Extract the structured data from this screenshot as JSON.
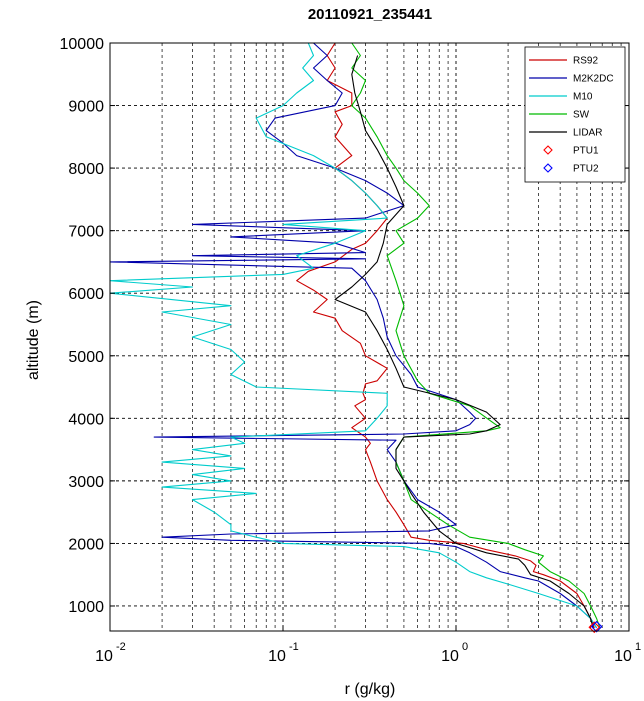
{
  "chart_data": {
    "type": "line",
    "title": "20110921_235441",
    "xlabel": "r (g/kg)",
    "ylabel": "altitude (m)",
    "x_scale": "log",
    "xlim": [
      0.01,
      10
    ],
    "ylim": [
      600,
      10000
    ],
    "x_ticks": [
      {
        "base": "10",
        "exp": "-2",
        "value": 0.01
      },
      {
        "base": "10",
        "exp": "-1",
        "value": 0.1
      },
      {
        "base": "10",
        "exp": "0",
        "value": 1
      },
      {
        "base": "10",
        "exp": "1",
        "value": 10
      }
    ],
    "y_ticks": [
      1000,
      2000,
      3000,
      4000,
      5000,
      6000,
      7000,
      8000,
      9000,
      10000
    ],
    "grid": true,
    "legend_position": "top-right",
    "series": [
      {
        "name": "RS92",
        "color": "#cc0000",
        "kind": "line",
        "points": [
          [
            6.3,
            650
          ],
          [
            6.0,
            800
          ],
          [
            5.5,
            1000
          ],
          [
            5.0,
            1200
          ],
          [
            4.0,
            1400
          ],
          [
            3.2,
            1500
          ],
          [
            2.8,
            1550
          ],
          [
            2.9,
            1650
          ],
          [
            2.7,
            1720
          ],
          [
            2.2,
            1800
          ],
          [
            1.5,
            1900
          ],
          [
            1.1,
            2000
          ],
          [
            0.7,
            2050
          ],
          [
            0.55,
            2100
          ],
          [
            0.5,
            2300
          ],
          [
            0.45,
            2500
          ],
          [
            0.4,
            2700
          ],
          [
            0.35,
            3000
          ],
          [
            0.32,
            3300
          ],
          [
            0.3,
            3500
          ],
          [
            0.32,
            3600
          ],
          [
            0.3,
            3700
          ],
          [
            0.25,
            3850
          ],
          [
            0.3,
            4000
          ],
          [
            0.26,
            4200
          ],
          [
            0.3,
            4300
          ],
          [
            0.29,
            4400
          ],
          [
            0.3,
            4550
          ],
          [
            0.35,
            4600
          ],
          [
            0.4,
            4800
          ],
          [
            0.3,
            5000
          ],
          [
            0.28,
            5200
          ],
          [
            0.22,
            5400
          ],
          [
            0.2,
            5600
          ],
          [
            0.15,
            5700
          ],
          [
            0.18,
            5900
          ],
          [
            0.15,
            6050
          ],
          [
            0.12,
            6200
          ],
          [
            0.14,
            6350
          ],
          [
            0.2,
            6500
          ],
          [
            0.25,
            6700
          ],
          [
            0.3,
            6800
          ],
          [
            0.35,
            7000
          ],
          [
            0.4,
            7200
          ],
          [
            0.35,
            7400
          ],
          [
            0.3,
            7600
          ],
          [
            0.25,
            7800
          ],
          [
            0.2,
            8000
          ],
          [
            0.25,
            8200
          ],
          [
            0.2,
            8500
          ],
          [
            0.22,
            8700
          ],
          [
            0.2,
            8900
          ],
          [
            0.25,
            9000
          ],
          [
            0.25,
            9200
          ],
          [
            0.18,
            9400
          ],
          [
            0.2,
            9600
          ],
          [
            0.18,
            9800
          ],
          [
            0.2,
            10000
          ]
        ]
      },
      {
        "name": "M2K2DC",
        "color": "#0000aa",
        "kind": "line",
        "points": [
          [
            6.5,
            650
          ],
          [
            6.0,
            800
          ],
          [
            5.0,
            1000
          ],
          [
            4.0,
            1200
          ],
          [
            3.0,
            1400
          ],
          [
            2.5,
            1450
          ],
          [
            1.8,
            1550
          ],
          [
            1.5,
            1700
          ],
          [
            1.2,
            1850
          ],
          [
            1.0,
            1950
          ],
          [
            0.7,
            2000
          ],
          [
            0.05,
            2050
          ],
          [
            0.02,
            2100
          ],
          [
            0.05,
            2150
          ],
          [
            0.7,
            2200
          ],
          [
            1.0,
            2300
          ],
          [
            0.8,
            2500
          ],
          [
            0.6,
            2700
          ],
          [
            0.5,
            3000
          ],
          [
            0.45,
            3300
          ],
          [
            0.4,
            3500
          ],
          [
            0.45,
            3650
          ],
          [
            0.018,
            3700
          ],
          [
            0.5,
            3750
          ],
          [
            1.0,
            3800
          ],
          [
            1.2,
            3900
          ],
          [
            1.3,
            4000
          ],
          [
            1.2,
            4100
          ],
          [
            1.0,
            4300
          ],
          [
            0.6,
            4500
          ],
          [
            0.55,
            4700
          ],
          [
            0.45,
            5000
          ],
          [
            0.4,
            5300
          ],
          [
            0.38,
            5600
          ],
          [
            0.35,
            5900
          ],
          [
            0.3,
            6200
          ],
          [
            0.25,
            6400
          ],
          [
            0.01,
            6500
          ],
          [
            0.3,
            6550
          ],
          [
            0.03,
            6600
          ],
          [
            0.3,
            6650
          ],
          [
            0.2,
            6800
          ],
          [
            0.05,
            6900
          ],
          [
            0.3,
            7000
          ],
          [
            0.03,
            7100
          ],
          [
            0.3,
            7200
          ],
          [
            0.5,
            7400
          ],
          [
            0.4,
            7600
          ],
          [
            0.3,
            7800
          ],
          [
            0.2,
            8000
          ],
          [
            0.12,
            8200
          ],
          [
            0.1,
            8400
          ],
          [
            0.08,
            8600
          ],
          [
            0.09,
            8800
          ],
          [
            0.2,
            9000
          ],
          [
            0.22,
            9200
          ],
          [
            0.18,
            9400
          ],
          [
            0.15,
            9600
          ],
          [
            0.18,
            9800
          ],
          [
            0.15,
            10000
          ]
        ]
      },
      {
        "name": "M10",
        "color": "#00cccc",
        "kind": "line",
        "points": [
          [
            6.5,
            650
          ],
          [
            6.0,
            800
          ],
          [
            5.0,
            1000
          ],
          [
            3.0,
            1200
          ],
          [
            2.0,
            1350
          ],
          [
            1.5,
            1450
          ],
          [
            1.2,
            1550
          ],
          [
            1.0,
            1700
          ],
          [
            0.8,
            1850
          ],
          [
            0.5,
            1950
          ],
          [
            0.1,
            2000
          ],
          [
            0.07,
            2100
          ],
          [
            0.05,
            2200
          ],
          [
            0.05,
            2300
          ],
          [
            0.04,
            2500
          ],
          [
            0.03,
            2700
          ],
          [
            0.07,
            2800
          ],
          [
            0.02,
            2900
          ],
          [
            0.05,
            3000
          ],
          [
            0.03,
            3100
          ],
          [
            0.06,
            3200
          ],
          [
            0.02,
            3300
          ],
          [
            0.05,
            3400
          ],
          [
            0.03,
            3500
          ],
          [
            0.06,
            3600
          ],
          [
            0.05,
            3700
          ],
          [
            0.3,
            3800
          ],
          [
            0.35,
            4000
          ],
          [
            0.4,
            4200
          ],
          [
            0.4,
            4400
          ],
          [
            0.07,
            4500
          ],
          [
            0.05,
            4700
          ],
          [
            0.06,
            4900
          ],
          [
            0.05,
            5100
          ],
          [
            0.03,
            5300
          ],
          [
            0.05,
            5500
          ],
          [
            0.02,
            5700
          ],
          [
            0.05,
            5800
          ],
          [
            0.01,
            6000
          ],
          [
            0.03,
            6100
          ],
          [
            0.01,
            6200
          ],
          [
            0.1,
            6300
          ],
          [
            0.15,
            6400
          ],
          [
            0.12,
            6600
          ],
          [
            0.2,
            6800
          ],
          [
            0.3,
            7000
          ],
          [
            0.1,
            7100
          ],
          [
            0.4,
            7200
          ],
          [
            0.35,
            7400
          ],
          [
            0.3,
            7600
          ],
          [
            0.25,
            7800
          ],
          [
            0.2,
            8000
          ],
          [
            0.15,
            8200
          ],
          [
            0.08,
            8500
          ],
          [
            0.07,
            8800
          ],
          [
            0.1,
            9000
          ],
          [
            0.12,
            9200
          ],
          [
            0.15,
            9400
          ],
          [
            0.13,
            9600
          ],
          [
            0.15,
            9800
          ],
          [
            0.14,
            10000
          ]
        ]
      },
      {
        "name": "SW",
        "color": "#00bb00",
        "kind": "line",
        "points": [
          [
            6.8,
            650
          ],
          [
            6.5,
            800
          ],
          [
            6.0,
            1000
          ],
          [
            5.5,
            1200
          ],
          [
            4.5,
            1400
          ],
          [
            3.5,
            1550
          ],
          [
            3.0,
            1700
          ],
          [
            3.2,
            1800
          ],
          [
            2.5,
            1900
          ],
          [
            2.0,
            2000
          ],
          [
            1.2,
            2100
          ],
          [
            0.9,
            2300
          ],
          [
            0.7,
            2500
          ],
          [
            0.55,
            2700
          ],
          [
            0.5,
            3000
          ],
          [
            0.45,
            3300
          ],
          [
            0.45,
            3500
          ],
          [
            0.5,
            3700
          ],
          [
            1.5,
            3800
          ],
          [
            1.8,
            3850
          ],
          [
            1.6,
            3950
          ],
          [
            1.2,
            4200
          ],
          [
            0.7,
            4400
          ],
          [
            0.6,
            4600
          ],
          [
            0.5,
            5000
          ],
          [
            0.45,
            5400
          ],
          [
            0.5,
            5800
          ],
          [
            0.45,
            6200
          ],
          [
            0.4,
            6600
          ],
          [
            0.5,
            6800
          ],
          [
            0.45,
            7000
          ],
          [
            0.6,
            7200
          ],
          [
            0.7,
            7400
          ],
          [
            0.6,
            7600
          ],
          [
            0.5,
            7800
          ],
          [
            0.45,
            8000
          ],
          [
            0.4,
            8200
          ],
          [
            0.35,
            8500
          ],
          [
            0.3,
            8800
          ],
          [
            0.25,
            9000
          ],
          [
            0.28,
            9200
          ],
          [
            0.3,
            9400
          ],
          [
            0.25,
            9600
          ],
          [
            0.28,
            9800
          ],
          [
            0.25,
            10000
          ]
        ]
      },
      {
        "name": "LIDAR",
        "color": "#000000",
        "kind": "line",
        "points": [
          [
            6.2,
            650
          ],
          [
            6.0,
            800
          ],
          [
            5.5,
            1000
          ],
          [
            4.5,
            1200
          ],
          [
            3.5,
            1400
          ],
          [
            2.7,
            1500
          ],
          [
            2.5,
            1650
          ],
          [
            2.3,
            1750
          ],
          [
            1.5,
            1850
          ],
          [
            1.0,
            2000
          ],
          [
            0.8,
            2200
          ],
          [
            0.65,
            2500
          ],
          [
            0.55,
            2800
          ],
          [
            0.5,
            3000
          ],
          [
            0.45,
            3200
          ],
          [
            0.45,
            3500
          ],
          [
            0.5,
            3700
          ],
          [
            1.2,
            3750
          ],
          [
            1.5,
            3800
          ],
          [
            1.8,
            3900
          ],
          [
            1.5,
            4100
          ],
          [
            1.0,
            4300
          ],
          [
            0.5,
            4500
          ],
          [
            0.45,
            4800
          ],
          [
            0.4,
            5100
          ],
          [
            0.35,
            5400
          ],
          [
            0.3,
            5700
          ],
          [
            0.2,
            5900
          ],
          [
            0.25,
            6100
          ],
          [
            0.3,
            6300
          ],
          [
            0.35,
            6500
          ],
          [
            0.38,
            6800
          ],
          [
            0.4,
            7100
          ],
          [
            0.5,
            7400
          ],
          [
            0.45,
            7700
          ],
          [
            0.4,
            8000
          ],
          [
            0.35,
            8300
          ],
          [
            0.3,
            8600
          ],
          [
            0.28,
            8900
          ],
          [
            0.26,
            9200
          ],
          [
            0.25,
            9500
          ],
          [
            0.27,
            9800
          ]
        ]
      },
      {
        "name": "PTU1",
        "color": "#ff0000",
        "kind": "marker",
        "points": [
          [
            6.3,
            660
          ]
        ]
      },
      {
        "name": "PTU2",
        "color": "#0000ff",
        "kind": "marker",
        "points": [
          [
            6.5,
            670
          ]
        ]
      }
    ]
  }
}
